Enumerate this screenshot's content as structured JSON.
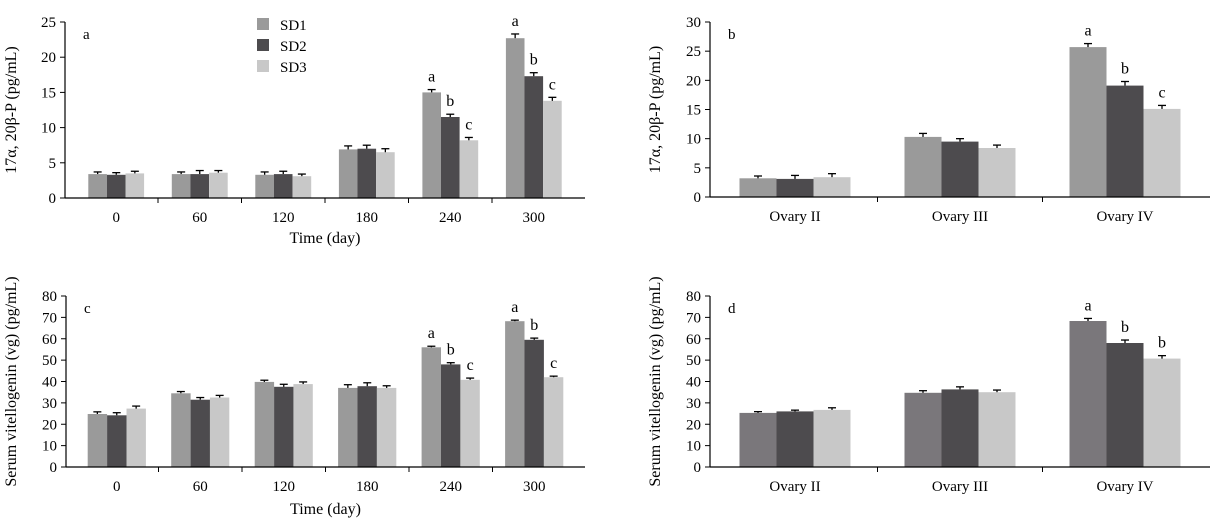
{
  "colors": {
    "sd1": "#9a9a9a",
    "sd2": "#4d4b4e",
    "sd3": "#c8c8c8",
    "sd1_d": "#7a777b",
    "axis": "#000000"
  },
  "legend": [
    "SD1",
    "SD2",
    "SD3"
  ],
  "chart_data": [
    {
      "id": "a",
      "type": "bar",
      "panel_label": "a",
      "xlabel": "Time (day)",
      "ylabel": "17α, 20β-P (pg/mL)",
      "categories": [
        "0",
        "60",
        "120",
        "180",
        "240",
        "300"
      ],
      "ylim": [
        0,
        25
      ],
      "ytick_step": 5,
      "legend": "top-left",
      "series": [
        {
          "name": "SD1",
          "color_key": "sd1",
          "values": [
            3.4,
            3.4,
            3.3,
            6.9,
            15.0,
            22.7
          ],
          "errors": [
            0.3,
            0.3,
            0.4,
            0.5,
            0.4,
            0.6
          ],
          "labels": [
            "",
            "",
            "",
            "",
            "a",
            "a"
          ]
        },
        {
          "name": "SD2",
          "color_key": "sd2",
          "values": [
            3.3,
            3.4,
            3.4,
            7.0,
            11.5,
            17.3
          ],
          "errors": [
            0.3,
            0.5,
            0.4,
            0.5,
            0.4,
            0.5
          ],
          "labels": [
            "",
            "",
            "",
            "",
            "b",
            "b"
          ]
        },
        {
          "name": "SD3",
          "color_key": "sd3",
          "values": [
            3.5,
            3.6,
            3.1,
            6.5,
            8.2,
            13.8
          ],
          "errors": [
            0.3,
            0.3,
            0.3,
            0.5,
            0.4,
            0.5
          ],
          "labels": [
            "",
            "",
            "",
            "",
            "c",
            "c"
          ]
        }
      ]
    },
    {
      "id": "b",
      "type": "bar",
      "panel_label": "b",
      "xlabel": "",
      "ylabel": "17α, 20β-P (pg/mL)",
      "categories": [
        "Ovary II",
        "Ovary III",
        "Ovary IV"
      ],
      "ylim": [
        0,
        30
      ],
      "ytick_step": 5,
      "series": [
        {
          "name": "SD1",
          "color_key": "sd1",
          "values": [
            3.2,
            10.3,
            25.7
          ],
          "errors": [
            0.4,
            0.6,
            0.6
          ],
          "labels": [
            "",
            "",
            "a"
          ]
        },
        {
          "name": "SD2",
          "color_key": "sd2",
          "values": [
            3.1,
            9.5,
            19.1
          ],
          "errors": [
            0.6,
            0.5,
            0.7
          ],
          "labels": [
            "",
            "",
            "b"
          ]
        },
        {
          "name": "SD3",
          "color_key": "sd3",
          "values": [
            3.4,
            8.4,
            15.1
          ],
          "errors": [
            0.6,
            0.5,
            0.6
          ],
          "labels": [
            "",
            "",
            "c"
          ]
        }
      ]
    },
    {
      "id": "c",
      "type": "bar",
      "panel_label": "c",
      "xlabel": "Time (day)",
      "ylabel": "Serum vitellogenin (vg) (pg/mL)",
      "categories": [
        "0",
        "60",
        "120",
        "180",
        "240",
        "300"
      ],
      "ylim": [
        0,
        80
      ],
      "ytick_step": 10,
      "series": [
        {
          "name": "SD1",
          "color_key": "sd1",
          "values": [
            24.8,
            34.5,
            39.8,
            37.0,
            56.0,
            68.2
          ],
          "errors": [
            1.0,
            0.8,
            0.8,
            1.5,
            0.5,
            0.5
          ],
          "labels": [
            "",
            "",
            "",
            "",
            "a",
            "a"
          ]
        },
        {
          "name": "SD2",
          "color_key": "sd2",
          "values": [
            24.2,
            31.5,
            37.5,
            37.8,
            48.0,
            59.5
          ],
          "errors": [
            1.2,
            1.0,
            1.2,
            1.6,
            0.8,
            0.8
          ],
          "labels": [
            "",
            "",
            "",
            "",
            "b",
            "b"
          ]
        },
        {
          "name": "SD3",
          "color_key": "sd3",
          "values": [
            27.3,
            32.5,
            38.8,
            37.0,
            40.8,
            42.0
          ],
          "errors": [
            1.2,
            1.0,
            1.0,
            1.0,
            0.8,
            0.5
          ],
          "labels": [
            "",
            "",
            "",
            "",
            "c",
            "c"
          ]
        }
      ]
    },
    {
      "id": "d",
      "type": "bar",
      "panel_label": "d",
      "xlabel": "",
      "ylabel": "Serum vitellogenin (vg) (pg/mL)",
      "categories": [
        "Ovary II",
        "Ovary III",
        "Ovary IV"
      ],
      "ylim": [
        0,
        80
      ],
      "ytick_step": 10,
      "series": [
        {
          "name": "SD1",
          "color_key": "sd1_d",
          "values": [
            25.3,
            34.7,
            68.3
          ],
          "errors": [
            0.6,
            1.0,
            1.2
          ],
          "labels": [
            "",
            "",
            "a"
          ]
        },
        {
          "name": "SD2",
          "color_key": "sd2",
          "values": [
            26.0,
            36.3,
            58.0
          ],
          "errors": [
            0.6,
            1.2,
            1.4
          ],
          "labels": [
            "",
            "",
            "b"
          ]
        },
        {
          "name": "SD3",
          "color_key": "sd3",
          "values": [
            26.7,
            35.0,
            50.7
          ],
          "errors": [
            1.0,
            1.0,
            1.4
          ],
          "labels": [
            "",
            "",
            "b"
          ]
        }
      ]
    }
  ]
}
